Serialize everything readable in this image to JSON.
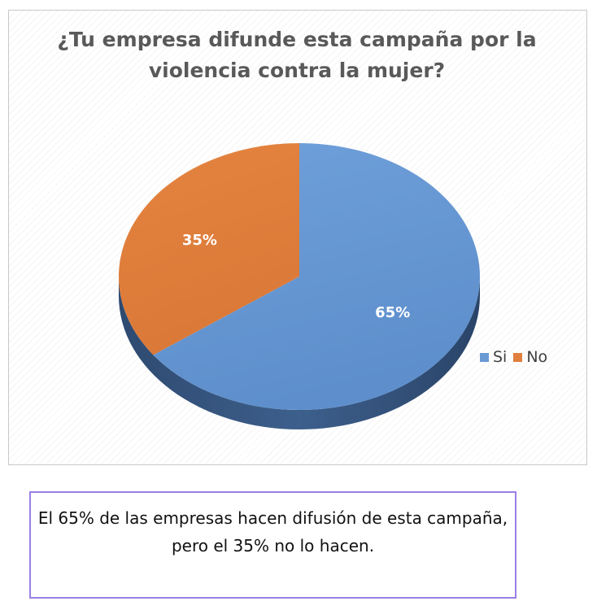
{
  "chart_data": {
    "type": "pie",
    "title": "¿Tu empresa difunde esta campaña por la violencia contra la mujer?",
    "categories": [
      "Si",
      "No"
    ],
    "values": [
      65,
      35
    ],
    "labels": [
      "65%",
      "35%"
    ],
    "colors": [
      "#6a9ad4",
      "#e07f3e"
    ],
    "legend_position": "right"
  },
  "caption": "El 65% de las empresas hacen difusión de esta campaña, pero el 35% no lo hacen."
}
